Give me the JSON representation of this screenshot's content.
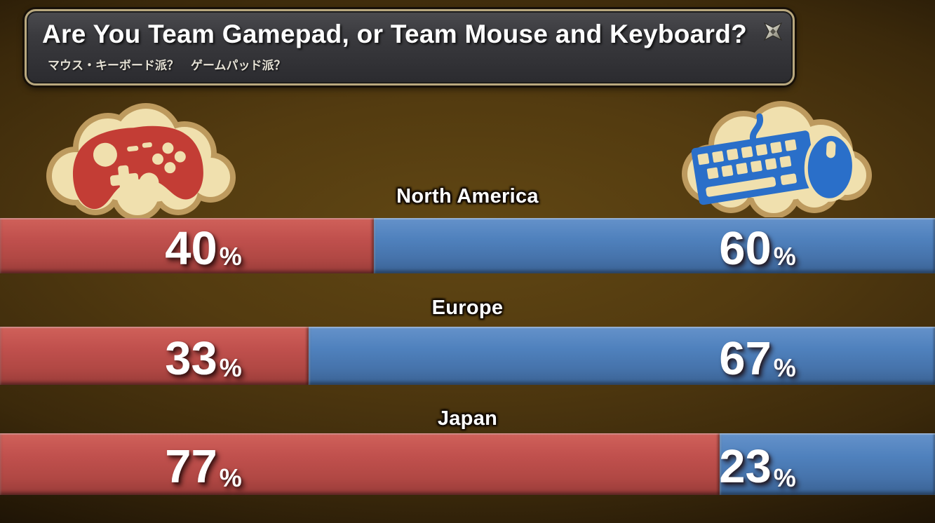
{
  "slide": {
    "title": "Are You Team Gamepad, or Team Mouse and Keyboard?",
    "subtitle_jp": "マウス・キーボード派？　ゲームパッド派？",
    "corner_icon": "four-point-star-icon"
  },
  "icons": {
    "left_cloud": "gamepad-icon",
    "right_cloud": "keyboard-mouse-icon"
  },
  "colors": {
    "gamepad_red_bar": "#c0504d",
    "mkb_blue_bar": "#4f81bd",
    "icon_red": "#c33d35",
    "icon_blue": "#2a6fc9",
    "cloud_fill": "#f0e0ae",
    "cloud_border": "#bd9a5e",
    "background_brown": "#533b10",
    "panel_gray": "#353538",
    "panel_border_gold": "#b9a87e"
  },
  "percent_sign": "%",
  "chart_data": {
    "type": "bar",
    "orientation": "horizontal",
    "stacked": true,
    "unit": "%",
    "title": "Are You Team Gamepad, or Team Mouse and Keyboard?",
    "categories": [
      "North America",
      "Europe",
      "Japan"
    ],
    "series": [
      {
        "name": "Gamepad",
        "color": "#c0504d",
        "values": [
          40,
          33,
          77
        ]
      },
      {
        "name": "Mouse and Keyboard",
        "color": "#4f81bd",
        "values": [
          60,
          67,
          23
        ]
      }
    ],
    "value_labels": "inside-segments",
    "legend_position": "top-icon-clouds",
    "xlim": [
      0,
      100
    ]
  }
}
